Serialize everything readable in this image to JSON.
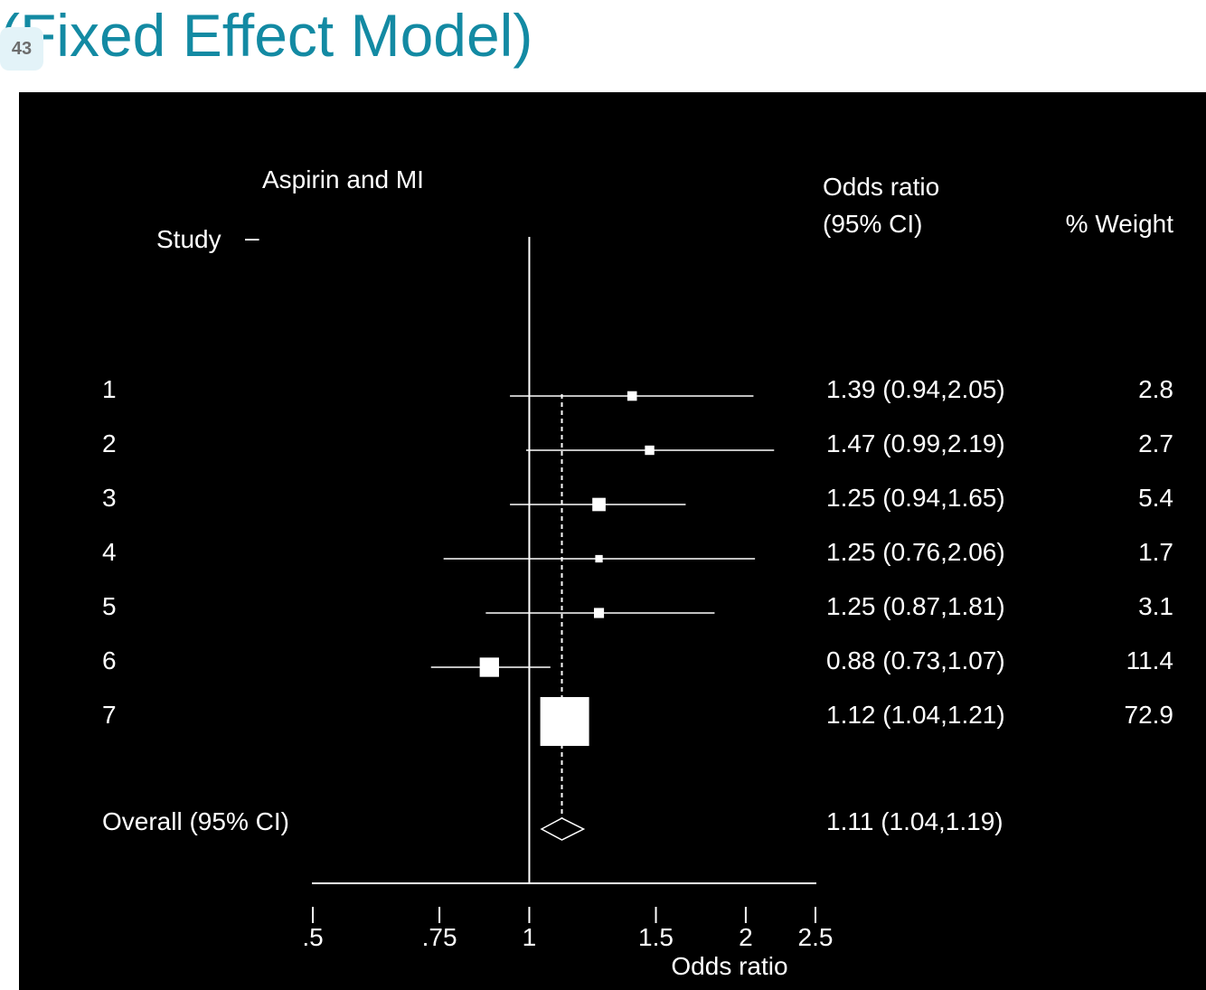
{
  "slide": {
    "title": "(Fixed Effect Model)",
    "number": "43",
    "title_color": "#138aa3",
    "background": "#000000",
    "foreground": "#ffffff"
  },
  "chart_data": {
    "type": "forest",
    "title": "Aspirin and MI",
    "row_header": "Study",
    "row_header_marker": "–",
    "col_or_header_line1": "Odds ratio",
    "col_or_header_line2": "(95% CI)",
    "col_weight_header": "% Weight",
    "xlabel": "Odds ratio",
    "xscale": "log",
    "xlim": [
      0.5,
      2.5
    ],
    "ticks": [
      {
        "value": 0.5,
        "label": ".5"
      },
      {
        "value": 0.75,
        "label": ".75"
      },
      {
        "value": 1,
        "label": "1"
      },
      {
        "value": 1.5,
        "label": "1.5"
      },
      {
        "value": 2,
        "label": "2"
      },
      {
        "value": 2.5,
        "label": "2.5"
      }
    ],
    "null_line": 1,
    "studies": [
      {
        "label": "1",
        "or": 1.39,
        "lo": 0.94,
        "hi": 2.05,
        "text": "1.39 (0.94,2.05)",
        "weight": "2.8"
      },
      {
        "label": "2",
        "or": 1.47,
        "lo": 0.99,
        "hi": 2.19,
        "text": "1.47 (0.99,2.19)",
        "weight": "2.7"
      },
      {
        "label": "3",
        "or": 1.25,
        "lo": 0.94,
        "hi": 1.65,
        "text": "1.25 (0.94,1.65)",
        "weight": "5.4"
      },
      {
        "label": "4",
        "or": 1.25,
        "lo": 0.76,
        "hi": 2.06,
        "text": "1.25 (0.76,2.06)",
        "weight": "1.7"
      },
      {
        "label": "5",
        "or": 1.25,
        "lo": 0.87,
        "hi": 1.81,
        "text": "1.25 (0.87,1.81)",
        "weight": "3.1"
      },
      {
        "label": "6",
        "or": 0.88,
        "lo": 0.73,
        "hi": 1.07,
        "text": "0.88 (0.73,1.07)",
        "weight": "11.4"
      },
      {
        "label": "7",
        "or": 1.12,
        "lo": 1.04,
        "hi": 1.21,
        "text": "1.12 (1.04,1.21)",
        "weight": "72.9"
      }
    ],
    "overall": {
      "label": "Overall (95% CI)",
      "or": 1.11,
      "lo": 1.04,
      "hi": 1.19,
      "text": "1.11 (1.04,1.19)"
    }
  }
}
